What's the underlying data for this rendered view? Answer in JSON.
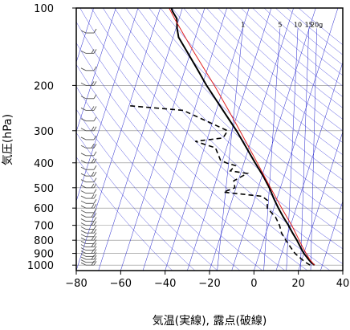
{
  "chart_data": {
    "type": "line",
    "xlabel": "気温(実線), 露点(破線)",
    "ylabel": "気圧(hPa)",
    "xlim": [
      -80,
      40
    ],
    "ylim": [
      1050,
      100
    ],
    "y_scale": "log",
    "x_ticks": [
      "−80",
      "−60",
      "−40",
      "−20",
      "0",
      "20",
      "40"
    ],
    "x_tick_values": [
      -80,
      -60,
      -40,
      -20,
      0,
      20,
      40
    ],
    "y_ticks": [
      "100",
      "200",
      "300",
      "400",
      "500",
      "600",
      "700",
      "800",
      "900",
      "1000"
    ],
    "y_tick_values": [
      100,
      200,
      300,
      400,
      500,
      600,
      700,
      800,
      900,
      1000
    ],
    "mixing_ratio_labels": [
      "1",
      "5",
      "10",
      "15",
      "20g"
    ],
    "mixing_ratio_values": [
      1,
      5,
      10,
      15,
      20
    ],
    "skew_factor": 0.32,
    "colors": {
      "temperature": "#000000",
      "dewpoint": "#000000",
      "parcel": "#e02020",
      "isotherms": "#2222cc",
      "adiabats": "#5050e0",
      "grid": "#888888",
      "wind_barbs": "#555555"
    },
    "series": [
      {
        "name": "気温",
        "style": "solid",
        "points": [
          {
            "p": 1000,
            "t": 26.5
          },
          {
            "p": 975,
            "t": 24.5
          },
          {
            "p": 950,
            "t": 23.0
          },
          {
            "p": 925,
            "t": 21.5
          },
          {
            "p": 900,
            "t": 20.0
          },
          {
            "p": 850,
            "t": 17.5
          },
          {
            "p": 800,
            "t": 15.0
          },
          {
            "p": 750,
            "t": 12.0
          },
          {
            "p": 700,
            "t": 9.0
          },
          {
            "p": 650,
            "t": 5.5
          },
          {
            "p": 600,
            "t": 2.0
          },
          {
            "p": 550,
            "t": -1.5
          },
          {
            "p": 500,
            "t": -5.0
          },
          {
            "p": 450,
            "t": -9.5
          },
          {
            "p": 400,
            "t": -15.0
          },
          {
            "p": 350,
            "t": -21.0
          },
          {
            "p": 300,
            "t": -28.0
          },
          {
            "p": 250,
            "t": -37.0
          },
          {
            "p": 200,
            "t": -48.0
          },
          {
            "p": 175,
            "t": -54.0
          },
          {
            "p": 150,
            "t": -61.0
          },
          {
            "p": 130,
            "t": -67.5
          },
          {
            "p": 120,
            "t": -69.5
          },
          {
            "p": 110,
            "t": -71.0
          },
          {
            "p": 103,
            "t": -74.0
          },
          {
            "p": 100,
            "t": -75.0
          }
        ]
      },
      {
        "name": "露点",
        "style": "dashed",
        "points": [
          {
            "p": 1000,
            "t": 24.5
          },
          {
            "p": 975,
            "t": 22.0
          },
          {
            "p": 950,
            "t": 20.0
          },
          {
            "p": 925,
            "t": 18.0
          },
          {
            "p": 900,
            "t": 16.0
          },
          {
            "p": 850,
            "t": 13.0
          },
          {
            "p": 800,
            "t": 10.0
          },
          {
            "p": 750,
            "t": 7.0
          },
          {
            "p": 700,
            "t": 5.0
          },
          {
            "p": 650,
            "t": 2.0
          },
          {
            "p": 600,
            "t": -3.0
          },
          {
            "p": 560,
            "t": -4.0
          },
          {
            "p": 540,
            "t": -7.0
          },
          {
            "p": 520,
            "t": -25.0
          },
          {
            "p": 500,
            "t": -20.5
          },
          {
            "p": 470,
            "t": -22.0
          },
          {
            "p": 440,
            "t": -17.0
          },
          {
            "p": 430,
            "t": -25.0
          },
          {
            "p": 410,
            "t": -23.5
          },
          {
            "p": 400,
            "t": -28.0
          },
          {
            "p": 390,
            "t": -31.0
          },
          {
            "p": 350,
            "t": -35.0
          },
          {
            "p": 330,
            "t": -45.0
          },
          {
            "p": 320,
            "t": -33.0
          },
          {
            "p": 300,
            "t": -32.0
          },
          {
            "p": 250,
            "t": -55.0
          },
          {
            "p": 240,
            "t": -80.0
          }
        ]
      },
      {
        "name": "",
        "style": "parcel",
        "points": [
          {
            "p": 1000,
            "t": 26.5
          },
          {
            "p": 950,
            "t": 23.5
          },
          {
            "p": 900,
            "t": 21.0
          },
          {
            "p": 850,
            "t": 18.5
          },
          {
            "p": 800,
            "t": 16.0
          },
          {
            "p": 700,
            "t": 10.5
          },
          {
            "p": 600,
            "t": 3.5
          },
          {
            "p": 500,
            "t": -4.5
          },
          {
            "p": 400,
            "t": -14.0
          },
          {
            "p": 300,
            "t": -26.5
          },
          {
            "p": 250,
            "t": -34.5
          },
          {
            "p": 200,
            "t": -44.5
          },
          {
            "p": 150,
            "t": -58.0
          },
          {
            "p": 130,
            "t": -64.5
          },
          {
            "p": 110,
            "t": -72.0
          },
          {
            "p": 100,
            "t": -76.0
          }
        ]
      }
    ],
    "wind_barb_levels": [
      1000,
      975,
      950,
      925,
      900,
      875,
      850,
      825,
      800,
      775,
      750,
      725,
      700,
      675,
      650,
      625,
      600,
      575,
      550,
      525,
      500,
      475,
      450,
      425,
      400,
      375,
      350,
      325,
      300,
      275,
      250,
      225,
      200,
      175,
      150,
      125
    ]
  }
}
